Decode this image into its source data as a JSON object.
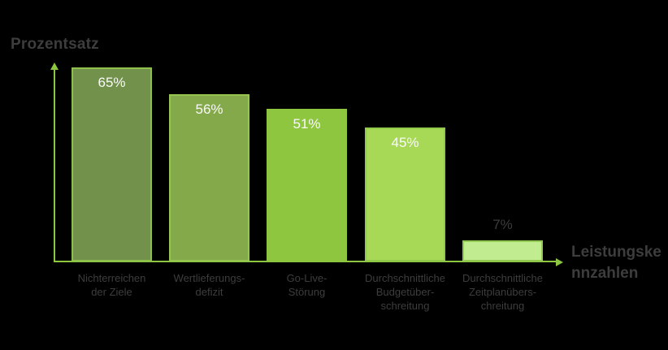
{
  "chart_data": {
    "type": "bar",
    "title": "",
    "ylabel": "Prozentsatz",
    "xlabel": "Leistungskennzahlen",
    "xlabel_display": "Leistungske\nnnzahlen",
    "categories": [
      "Nichterreichen der Ziele",
      "Wertlieferungs-defizit",
      "Go-Live-Störung",
      "Durchschnittliche Budgetüber-schreitung",
      "Durchschnittliche Zeitplanübers-chreitung"
    ],
    "categories_display": [
      "Nichterreichen\nder Ziele",
      "Wertlieferungs-\ndefizit",
      "Go-Live-\nStörung",
      "Durchschnittliche\nBudgetüber-\nschreitung",
      "Durchschnittliche\nZeitplanübers-\nchreitung"
    ],
    "values": [
      65,
      56,
      51,
      45,
      7
    ],
    "value_labels": [
      "65%",
      "56%",
      "51%",
      "45%",
      "7%"
    ],
    "ylim": [
      0,
      65
    ],
    "grid": false,
    "legend": null,
    "colors": {
      "bar_fills": [
        "#72924b",
        "#84a94b",
        "#8ec63f",
        "#a7d957",
        "#c2ec90"
      ],
      "bar_borders": [
        "#8fc04d",
        "#97c54f",
        "#8ec63f",
        "#93c94a",
        "#95ca52"
      ],
      "axis": "#8dc63f",
      "text": "#3d3d3d",
      "value_label_inside": "#fafafa",
      "value_label_outside": "#3d3d3d",
      "background": "#000000"
    }
  }
}
